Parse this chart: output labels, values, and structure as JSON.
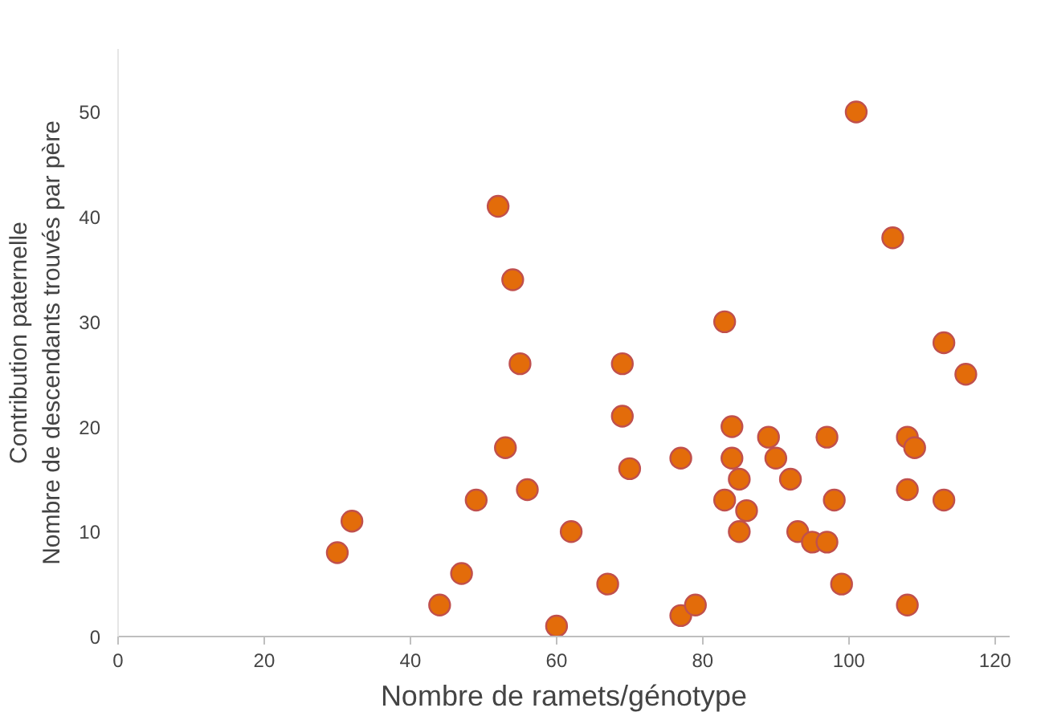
{
  "chart_data": {
    "type": "scatter",
    "xlabel": "Nombre de ramets/génotype",
    "ylabel": "Contribution paternelle\nNombre de descendants trouvés par père",
    "x": [
      30,
      32,
      44,
      47,
      49,
      52,
      53,
      54,
      55,
      56,
      60,
      62,
      67,
      69,
      69,
      70,
      77,
      77,
      79,
      83,
      83,
      84,
      84,
      85,
      85,
      86,
      89,
      90,
      92,
      93,
      95,
      97,
      97,
      98,
      99,
      101,
      106,
      108,
      108,
      108,
      109,
      113,
      113,
      116
    ],
    "series": [
      {
        "color": "#e36c0a",
        "values": [
          8,
          11,
          3,
          6,
          13,
          41,
          18,
          34,
          26,
          14,
          1,
          10,
          5,
          26,
          21,
          16,
          2,
          17,
          3,
          30,
          13,
          20,
          17,
          15,
          10,
          12,
          19,
          17,
          15,
          10,
          9,
          9,
          19,
          13,
          5,
          50,
          38,
          19,
          14,
          3,
          18,
          28,
          13,
          25
        ]
      }
    ],
    "xlim": [
      0,
      122
    ],
    "xticks": [
      0,
      20,
      40,
      60,
      80,
      100,
      120
    ],
    "ylim": [
      0,
      56
    ],
    "yticks": [
      0,
      10,
      20,
      30,
      40,
      50
    ],
    "grid": false,
    "marker": "circle"
  }
}
